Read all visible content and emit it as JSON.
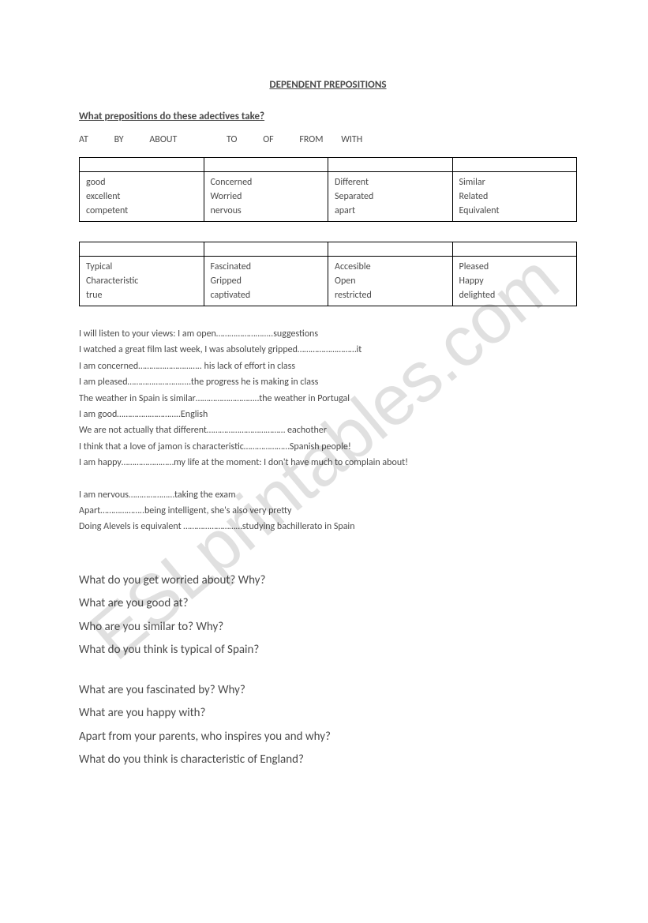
{
  "title": "DEPENDENT PREPOSITIONS",
  "subtitle": "What prepositions do these adectives take?",
  "prepositions": [
    "AT",
    "BY",
    "ABOUT",
    "TO",
    "OF",
    "FROM",
    "WITH"
  ],
  "table1": {
    "cols": [
      [
        "good",
        "excellent",
        "competent"
      ],
      [
        "Concerned",
        "Worried",
        "nervous"
      ],
      [
        "Different",
        "Separated",
        "apart"
      ],
      [
        "Similar",
        "Related",
        "Equivalent"
      ]
    ]
  },
  "table2": {
    "cols": [
      [
        "Typical",
        "Characteristic",
        "true"
      ],
      [
        "Fascinated",
        "Gripped",
        "captivated"
      ],
      [
        "Accesible",
        "Open",
        "restricted"
      ],
      [
        "Pleased",
        "Happy",
        "delighted"
      ]
    ]
  },
  "sentences_a": [
    "I will listen to your views: I am open……………………..suggestions",
    "I watched a great film last week, I was absolutely gripped………………………it",
    "I am concerned……………………….. his lack of effort in class",
    "I am pleased………………………..the progress he is making in class",
    "The weather in Spain is similar………………………..the weather in Portugal",
    "I am good………………………..English",
    "We are not actually that different……………………………… eachother",
    "I think that a love of jamon is characteristic…………………Spanish people!",
    "I am happy……………………my life at the moment: I don't have much to complain about!"
  ],
  "sentences_b": [
    "I am nervous…………………taking the exam",
    "Apart………………..being intelligent, she's also very pretty",
    "Doing Alevels is equivalent ………………………studying bachillerato in Spain"
  ],
  "questions_a": [
    "What do you get worried about? Why?",
    "What are you good at?",
    "Who are you similar to? Why?",
    "What do you think is typical of Spain?"
  ],
  "questions_b": [
    "What are you fascinated by? Why?",
    "What are you happy with?",
    "Apart from your parents, who inspires you and why?",
    "What do you think is characteristic of England?"
  ]
}
